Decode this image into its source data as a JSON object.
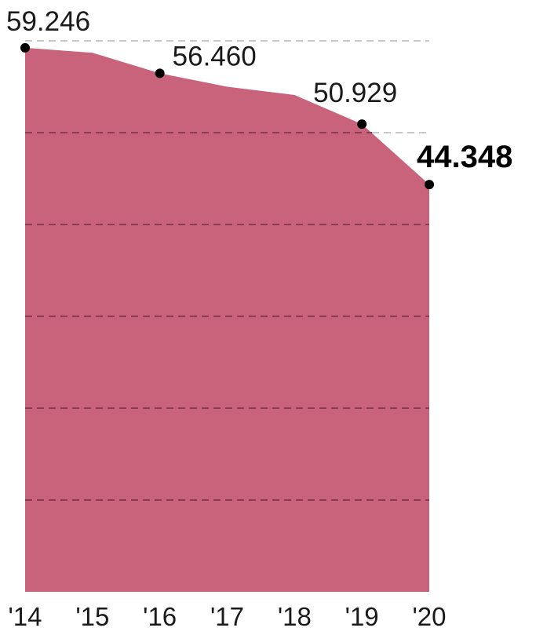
{
  "chart_data": {
    "type": "area",
    "x": [
      "'14",
      "'15",
      "'16",
      "'17",
      "'18",
      "'19",
      "'20"
    ],
    "values": [
      59.246,
      58.7,
      56.46,
      55.0,
      54.1,
      50.929,
      44.348
    ],
    "labeled_points": [
      {
        "index": 0,
        "text": "59.246",
        "bold": false
      },
      {
        "index": 2,
        "text": "56.460",
        "bold": false
      },
      {
        "index": 5,
        "text": "50.929",
        "bold": false
      },
      {
        "index": 6,
        "text": "44.348",
        "bold": true
      }
    ],
    "ylim": [
      0,
      60
    ],
    "grid_values": [
      10,
      20,
      30,
      40,
      50,
      60
    ],
    "grid": "dashed",
    "colors": {
      "area": "#c9637c",
      "grid_on_area": "#8c3c52",
      "grid_above": "#b5b5b5",
      "marker": "#000000"
    }
  }
}
